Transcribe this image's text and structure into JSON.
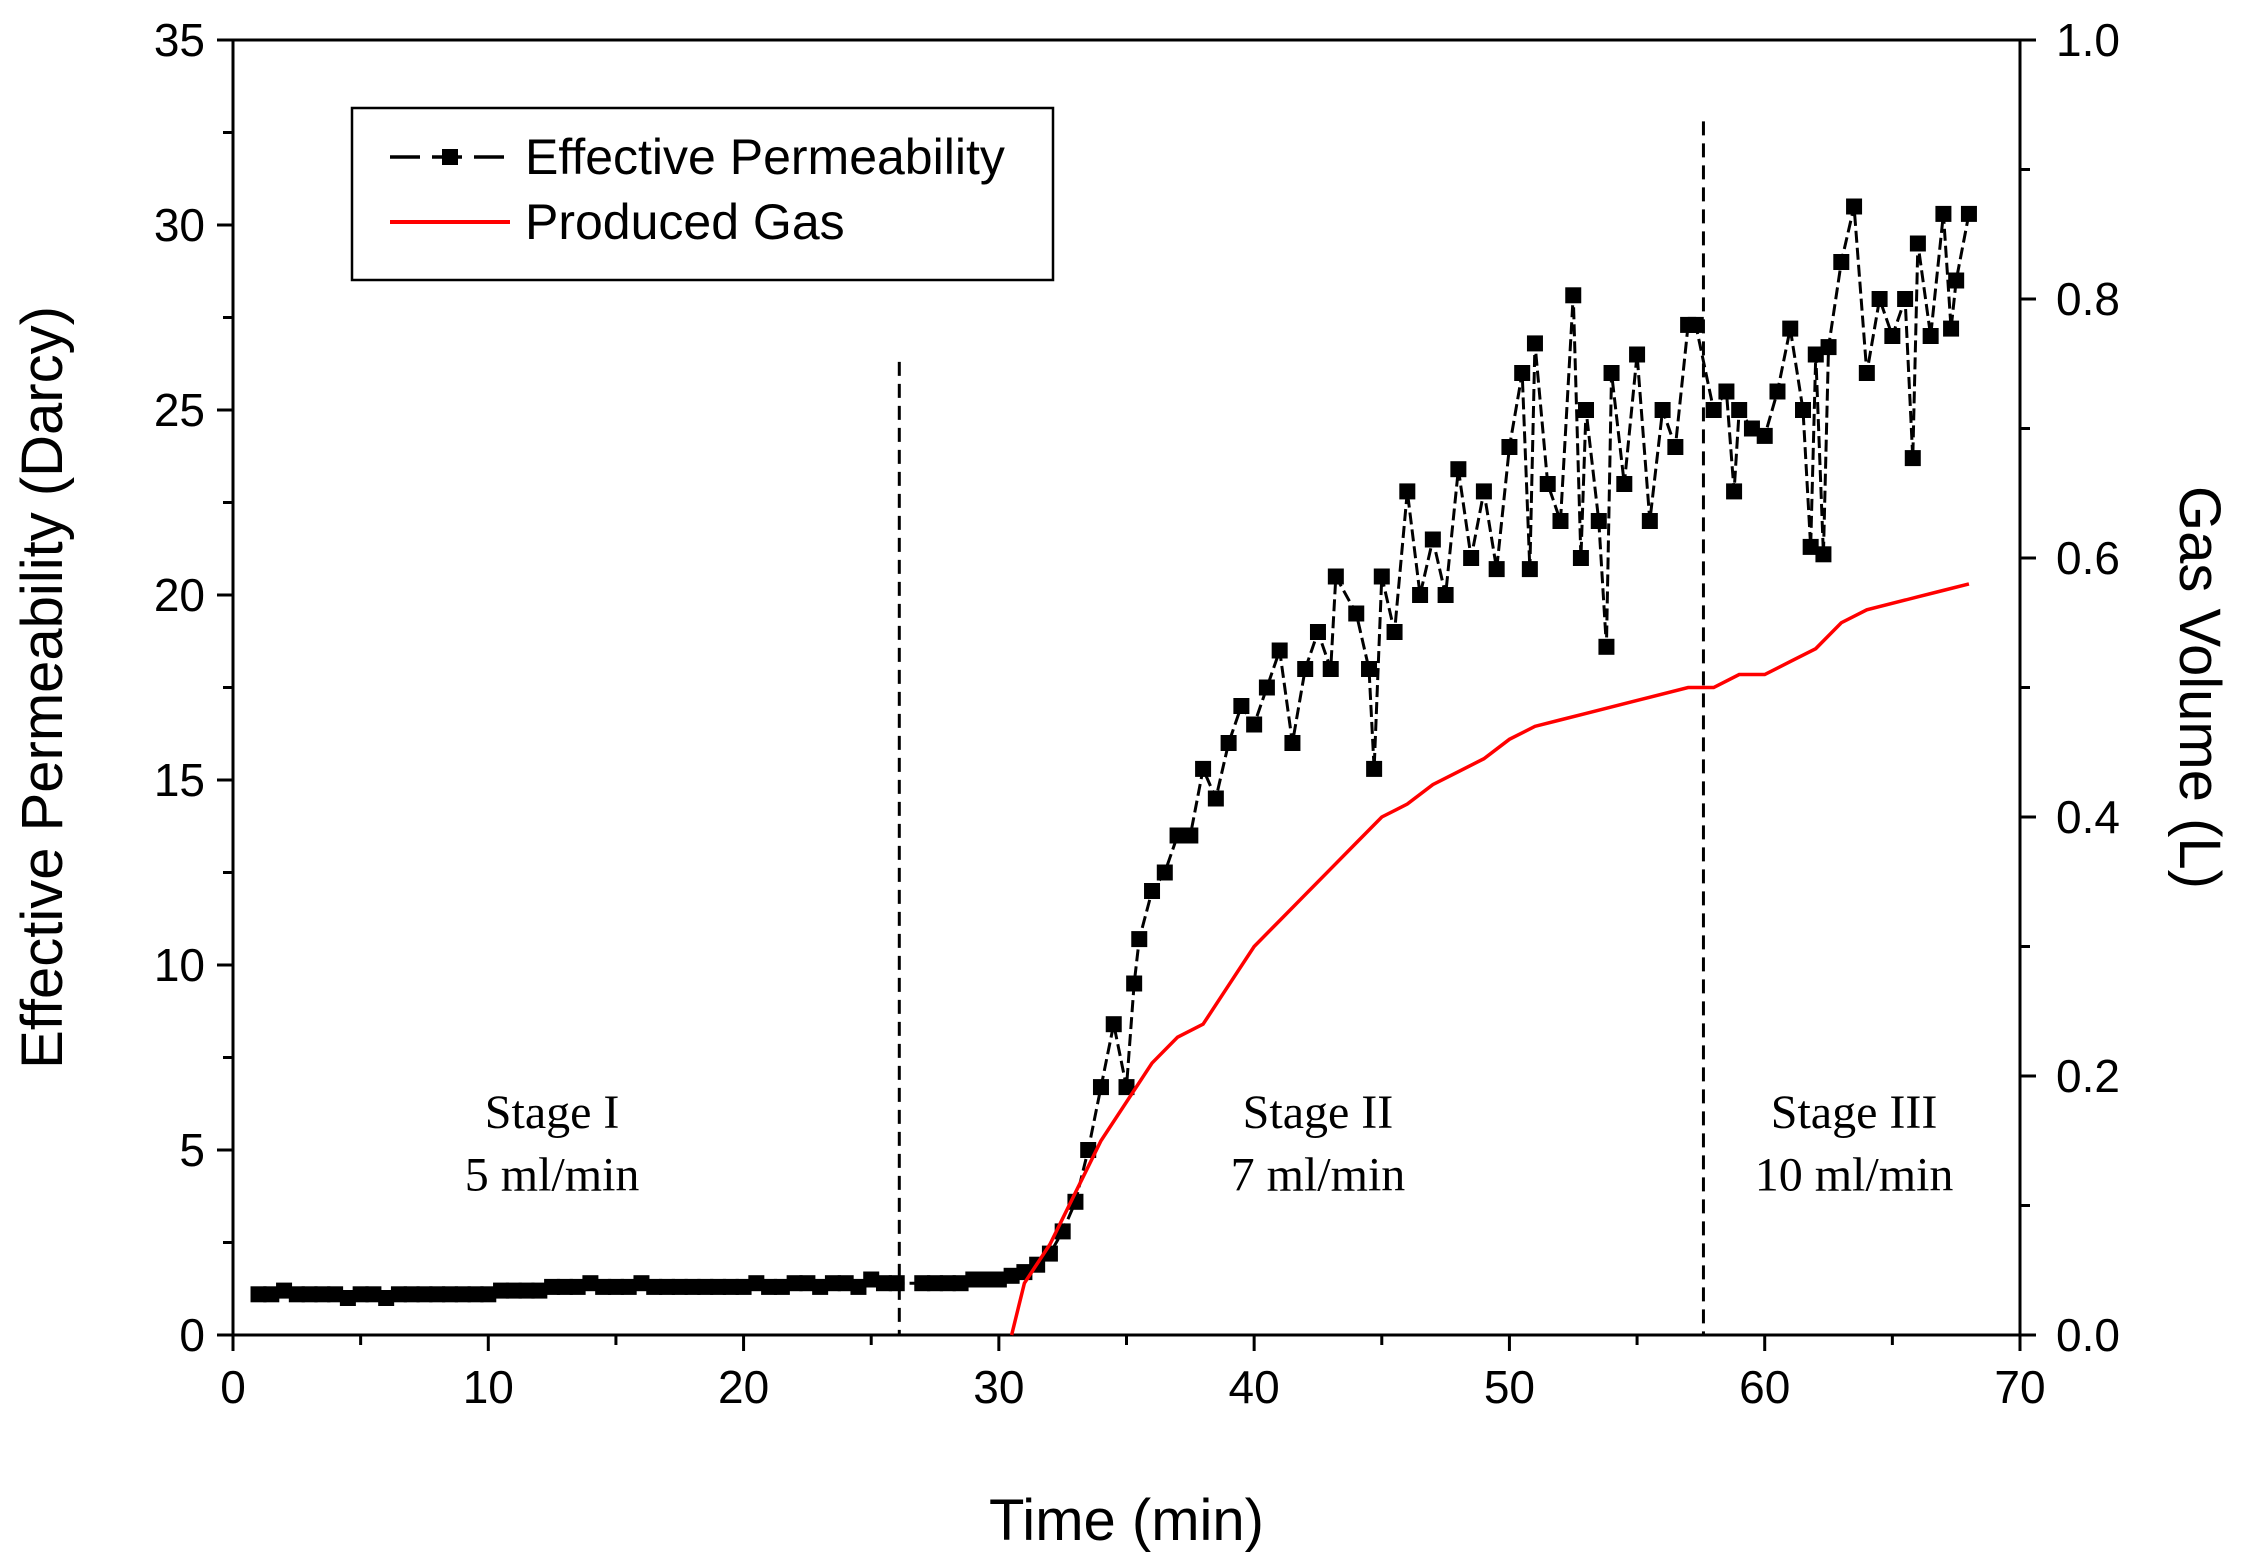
{
  "chart_data": {
    "type": "line",
    "title": "",
    "xlabel": "Time (min)",
    "ylabel": "Effective Permeability (Darcy)",
    "y2label": "Gas Volume (L)",
    "xlim": [
      0,
      70
    ],
    "ylim": [
      0,
      35
    ],
    "y2lim": [
      0,
      1.0
    ],
    "xticks": [
      "0",
      "10",
      "20",
      "30",
      "40",
      "50",
      "60",
      "70"
    ],
    "yticks": [
      "0",
      "5",
      "10",
      "15",
      "20",
      "25",
      "30",
      "35"
    ],
    "y2ticks": [
      "0.0",
      "0.2",
      "0.4",
      "0.6",
      "0.8",
      "1.0"
    ],
    "grid": false,
    "legend_position": "top-left",
    "colors": {
      "permeability": "#000000",
      "gas": "#ff0000"
    },
    "series": [
      {
        "name": "Effective Permeability",
        "axis": "left",
        "style": "dashed line with square markers",
        "x": [
          1,
          1.5,
          2,
          2.5,
          3,
          3.5,
          4,
          4.5,
          5,
          5.5,
          6,
          6.5,
          7,
          7.5,
          8,
          8.5,
          9,
          9.5,
          10,
          10.5,
          11,
          11.5,
          12,
          12.5,
          13,
          13.5,
          14,
          14.5,
          15,
          15.5,
          16,
          16.5,
          17,
          17.5,
          18,
          18.5,
          19,
          19.5,
          20,
          20.5,
          21,
          21.5,
          22,
          22.5,
          23,
          23.5,
          24,
          24.5,
          25,
          25.5,
          26,
          27,
          27.5,
          28,
          28.5,
          29,
          29.5,
          30,
          30.5,
          31,
          31.5,
          32,
          32.5,
          33,
          33.5,
          34,
          34.5,
          35,
          35.3,
          35.5,
          36,
          36.5,
          37,
          37.5,
          38,
          38.5,
          39,
          39.5,
          40,
          40.5,
          41,
          41.5,
          42,
          42.5,
          43,
          43.2,
          44,
          44.5,
          44.7,
          45,
          45.5,
          46,
          46.5,
          47,
          47.5,
          48,
          48.5,
          49,
          49.5,
          50,
          50.5,
          50.8,
          51,
          51.5,
          52,
          52.5,
          52.8,
          53,
          53.5,
          53.8,
          54,
          54.5,
          55,
          55.5,
          56,
          56.5,
          57,
          57.3,
          58,
          58.5,
          58.8,
          59,
          59.5,
          60,
          60.5,
          61,
          61.5,
          61.8,
          62,
          62.3,
          62.5,
          63,
          63.5,
          64,
          64.5,
          65,
          65.5,
          65.8,
          66,
          66.5,
          67,
          67.3,
          67.5,
          68
        ],
        "y": [
          1.1,
          1.1,
          1.2,
          1.1,
          1.1,
          1.1,
          1.1,
          1.0,
          1.1,
          1.1,
          1.0,
          1.1,
          1.1,
          1.1,
          1.1,
          1.1,
          1.1,
          1.1,
          1.1,
          1.2,
          1.2,
          1.2,
          1.2,
          1.3,
          1.3,
          1.3,
          1.4,
          1.3,
          1.3,
          1.3,
          1.4,
          1.3,
          1.3,
          1.3,
          1.3,
          1.3,
          1.3,
          1.3,
          1.3,
          1.4,
          1.3,
          1.3,
          1.4,
          1.4,
          1.3,
          1.4,
          1.4,
          1.3,
          1.5,
          1.4,
          1.4,
          1.4,
          1.4,
          1.4,
          1.4,
          1.5,
          1.5,
          1.5,
          1.6,
          1.7,
          1.9,
          2.2,
          2.8,
          3.6,
          5.0,
          6.7,
          8.4,
          6.7,
          9.5,
          10.7,
          12.0,
          12.5,
          13.5,
          13.5,
          15.3,
          14.5,
          16.0,
          17.0,
          16.5,
          17.5,
          18.5,
          16.0,
          18.0,
          19.0,
          18.0,
          20.5,
          19.5,
          18.0,
          15.3,
          20.5,
          19.0,
          22.8,
          20.0,
          21.5,
          20.0,
          23.4,
          21.0,
          22.8,
          20.7,
          24.0,
          26.0,
          20.7,
          26.8,
          23.0,
          22.0,
          28.1,
          21.0,
          25.0,
          22.0,
          18.6,
          26.0,
          23.0,
          26.5,
          22.0,
          25.0,
          24.0,
          27.3,
          27.3,
          25.0,
          25.5,
          22.8,
          25.0,
          24.5,
          24.3,
          25.5,
          27.2,
          25.0,
          21.3,
          26.5,
          21.1,
          26.7,
          29.0,
          30.5,
          26.0,
          28.0,
          27.0,
          28.0,
          23.7,
          29.5,
          27.0,
          30.3,
          27.2,
          28.5,
          30.3
        ]
      },
      {
        "name": "Produced Gas",
        "axis": "right",
        "style": "solid red line",
        "x": [
          30.5,
          31,
          32,
          33,
          34,
          35,
          36,
          37,
          38,
          39,
          40,
          41,
          42,
          43,
          44,
          45,
          46,
          47,
          48,
          49,
          50,
          51,
          52,
          53,
          55,
          57,
          58,
          59,
          60,
          61,
          62,
          63,
          64,
          66,
          67,
          68
        ],
        "y": [
          0,
          0.04,
          0.07,
          0.11,
          0.15,
          0.18,
          0.21,
          0.23,
          0.24,
          0.27,
          0.3,
          0.32,
          0.34,
          0.36,
          0.38,
          0.4,
          0.41,
          0.425,
          0.435,
          0.445,
          0.46,
          0.47,
          0.475,
          0.48,
          0.49,
          0.5,
          0.5,
          0.51,
          0.51,
          0.52,
          0.53,
          0.55,
          0.56,
          0.57,
          0.575,
          0.58
        ]
      }
    ],
    "stage_dividers": [
      26.1,
      57.6
    ],
    "annotations": [
      {
        "line1": "Stage I",
        "line2": "5 ml/min",
        "x": 12.5
      },
      {
        "line1": "Stage II",
        "line2": "7 ml/min",
        "x": 42.5
      },
      {
        "line1": "Stage III",
        "line2": "10 ml/min",
        "x": 63.5
      }
    ]
  }
}
